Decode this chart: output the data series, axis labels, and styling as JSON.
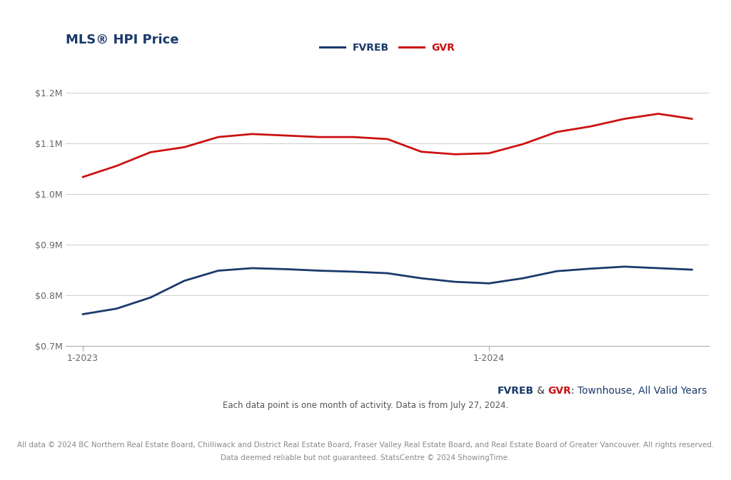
{
  "title": "MLS® HPI Price",
  "title_color": "#1a3a6b",
  "background_color": "#ffffff",
  "legend_labels": [
    "FVREB",
    "GVR"
  ],
  "fvreb_color": "#1a3a6b",
  "gvr_color": "#cc1111",
  "amp_color": "#333333",
  "subtitle_rest_color": "#1a3a6b",
  "x_tick_labels": [
    "1-2023",
    "1-2024"
  ],
  "ylim": [
    700000,
    1250000
  ],
  "yticks": [
    700000,
    800000,
    900000,
    1000000,
    1100000,
    1200000
  ],
  "ytick_labels": [
    "$0.7M",
    "$0.8M",
    "$0.9M",
    "$1.0M",
    "$1.1M",
    "$1.2M"
  ],
  "note1": "Each data point is one month of activity. Data is from July 27, 2024.",
  "note2": "All data © 2024 BC Northern Real Estate Board, Chilliwack and District Real Estate Board, Fraser Valley Real Estate Board, and Real Estate Board of Greater Vancouver. All rights reserved.",
  "note3": "Data deemed reliable but not guaranteed. StatsCentre © 2024 ShowingTime.",
  "gvr_values": [
    1033000,
    1055000,
    1082000,
    1092000,
    1112000,
    1118000,
    1115000,
    1112000,
    1112000,
    1108000,
    1083000,
    1078000,
    1080000,
    1098000,
    1122000,
    1133000,
    1148000,
    1158000,
    1148000
  ],
  "fvreb_values": [
    762000,
    773000,
    795000,
    828000,
    848000,
    853000,
    851000,
    848000,
    846000,
    843000,
    833000,
    826000,
    823000,
    833000,
    847000,
    852000,
    856000,
    853000,
    850000
  ],
  "n_points": 19,
  "line_width": 2.0
}
